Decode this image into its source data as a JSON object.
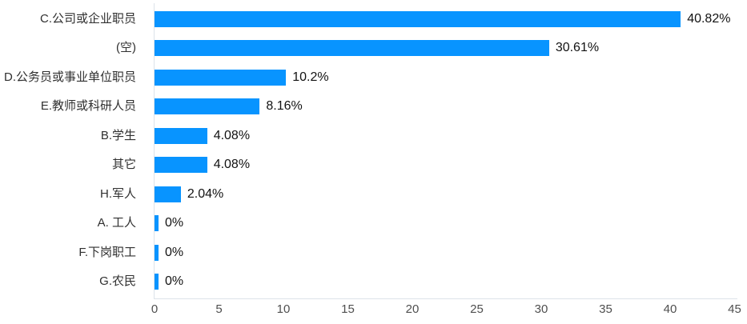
{
  "chart_data": {
    "type": "bar",
    "orientation": "horizontal",
    "title": "",
    "xlabel": "",
    "ylabel": "",
    "grid": false,
    "legend": "none",
    "xlim": [
      0,
      45
    ],
    "x_ticks": [
      "0",
      "5",
      "10",
      "15",
      "20",
      "25",
      "30",
      "35",
      "40",
      "45"
    ],
    "categories": [
      "C.公司或企业职员",
      "(空)",
      "D.公务员或事业单位职员",
      "E.教师或科研人员",
      "B.学生",
      "其它",
      "H.军人",
      "A. 工人",
      "F.下岗职工",
      "G.农民"
    ],
    "values": [
      40.82,
      30.61,
      10.2,
      8.16,
      4.08,
      4.08,
      2.04,
      0,
      0,
      0
    ],
    "value_labels": [
      "40.82%",
      "30.61%",
      "10.2%",
      "8.16%",
      "4.08%",
      "4.08%",
      "2.04%",
      "0%",
      "0%",
      "0%"
    ],
    "bar_color": "#0894FF"
  },
  "colors": {
    "bar": "#0894FF",
    "axis_line": "#DDE3EA",
    "category_label": "#303030",
    "value_label": "#121212",
    "tick_label": "#4F4F4F",
    "background": "#FFFFFF"
  }
}
